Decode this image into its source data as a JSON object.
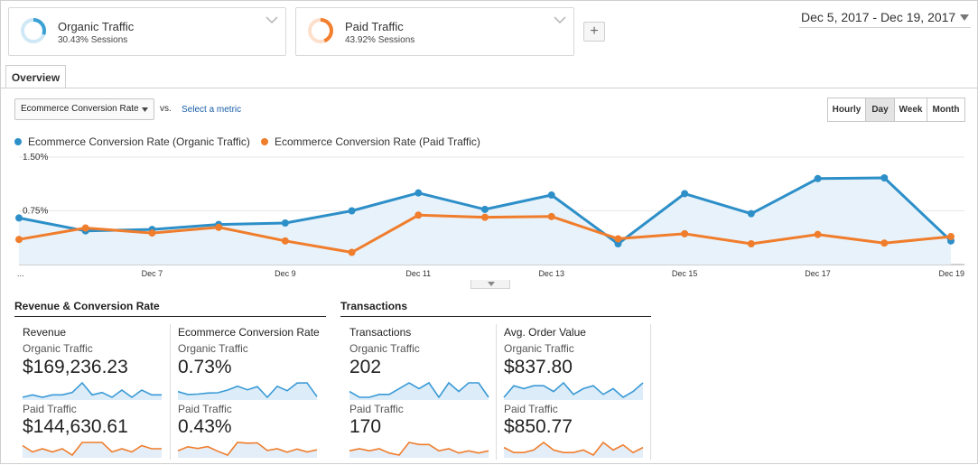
{
  "segments": [
    {
      "name": "Organic Traffic",
      "stat": "30.43% Sessions",
      "fraction": 0.3043,
      "color": "#3ba0d4"
    },
    {
      "name": "Paid Traffic",
      "stat": "43.92% Sessions",
      "fraction": 0.4392,
      "color": "#f27e2e"
    }
  ],
  "add_segment_label": "+",
  "date_range": "Dec 5, 2017 - Dec 19, 2017",
  "tabs": [
    {
      "label": "Overview"
    }
  ],
  "metric_selector": {
    "value": "Ecommerce Conversion Rate",
    "vs": "vs.",
    "select_metric": "Select a metric"
  },
  "granularity": {
    "options": [
      "Hourly",
      "Day",
      "Week",
      "Month"
    ],
    "selected": "Day"
  },
  "legend": [
    {
      "label": "Ecommerce Conversion Rate (Organic Traffic)",
      "color": "#2d8fc8"
    },
    {
      "label": "Ecommerce Conversion Rate (Paid Traffic)",
      "color": "#f07d2c"
    }
  ],
  "chart_data": {
    "type": "line",
    "x": [
      "Dec 5",
      "Dec 6",
      "Dec 7",
      "Dec 8",
      "Dec 9",
      "Dec 10",
      "Dec 11",
      "Dec 12",
      "Dec 13",
      "Dec 14",
      "Dec 15",
      "Dec 16",
      "Dec 17",
      "Dec 18",
      "Dec 19"
    ],
    "x_tick_labels": [
      "...",
      "Dec 7",
      "Dec 9",
      "Dec 11",
      "Dec 13",
      "Dec 15",
      "Dec 17",
      "Dec 19"
    ],
    "y_tick_labels": [
      "1.50%",
      "0.75%"
    ],
    "ylim": [
      0,
      1.5
    ],
    "series": [
      {
        "name": "Ecommerce Conversion Rate (Organic Traffic)",
        "color": "#2d8fc8",
        "values": [
          0.65,
          0.47,
          0.49,
          0.56,
          0.58,
          0.75,
          1.0,
          0.77,
          0.97,
          0.29,
          0.99,
          0.71,
          1.2,
          1.21,
          0.33
        ]
      },
      {
        "name": "Ecommerce Conversion Rate (Paid Traffic)",
        "color": "#f07d2c",
        "values": [
          0.35,
          0.51,
          0.44,
          0.52,
          0.33,
          0.17,
          0.69,
          0.66,
          0.67,
          0.36,
          0.43,
          0.29,
          0.42,
          0.3,
          0.39
        ]
      }
    ],
    "grid": true
  },
  "scorecards": {
    "groups": [
      {
        "title": "Revenue & Conversion Rate",
        "cards": [
          {
            "metric": "Revenue",
            "organic_label": "Organic Traffic",
            "organic_value": "$169,236.23",
            "paid_label": "Paid Traffic",
            "paid_value": "$144,630.61",
            "organic_spark": [
              3,
              4,
              3,
              4,
              4,
              5,
              9,
              4,
              5,
              3,
              6,
              3,
              6,
              4,
              4
            ],
            "paid_spark": [
              4,
              2,
              3,
              2,
              3,
              1,
              5,
              5,
              5,
              2,
              3,
              2,
              4,
              3,
              3
            ]
          },
          {
            "metric": "Ecommerce Conversion Rate",
            "organic_label": "Organic Traffic",
            "organic_value": "0.73%",
            "paid_label": "Paid Traffic",
            "paid_value": "0.43%",
            "organic_spark": [
              0.65,
              0.47,
              0.49,
              0.56,
              0.58,
              0.75,
              1.0,
              0.77,
              0.97,
              0.29,
              0.99,
              0.71,
              1.2,
              1.21,
              0.33
            ],
            "paid_spark": [
              0.35,
              0.51,
              0.44,
              0.52,
              0.33,
              0.17,
              0.69,
              0.66,
              0.67,
              0.36,
              0.43,
              0.29,
              0.42,
              0.3,
              0.39
            ]
          }
        ]
      },
      {
        "title": "Transactions",
        "cards": [
          {
            "metric": "Transactions",
            "organic_label": "Organic Traffic",
            "organic_value": "202",
            "paid_label": "Paid Traffic",
            "paid_value": "170",
            "organic_spark": [
              5,
              3,
              3,
              4,
              4,
              6,
              8,
              6,
              8,
              3,
              8,
              5,
              8,
              8,
              3
            ],
            "paid_spark": [
              3,
              4,
              3,
              4,
              2,
              1,
              7,
              6,
              6,
              3,
              4,
              2,
              3,
              2,
              3
            ]
          },
          {
            "metric": "Avg. Order Value",
            "organic_label": "Organic Traffic",
            "organic_value": "$837.80",
            "paid_label": "Paid Traffic",
            "paid_value": "$850.77",
            "organic_spark": [
              2,
              6,
              5,
              6,
              6,
              4,
              7,
              3,
              5,
              6,
              3,
              5,
              2,
              4,
              7
            ],
            "paid_spark": [
              4,
              2,
              2,
              3,
              6,
              3,
              2,
              2,
              3,
              1,
              6,
              3,
              5,
              2,
              4
            ]
          }
        ]
      }
    ]
  }
}
